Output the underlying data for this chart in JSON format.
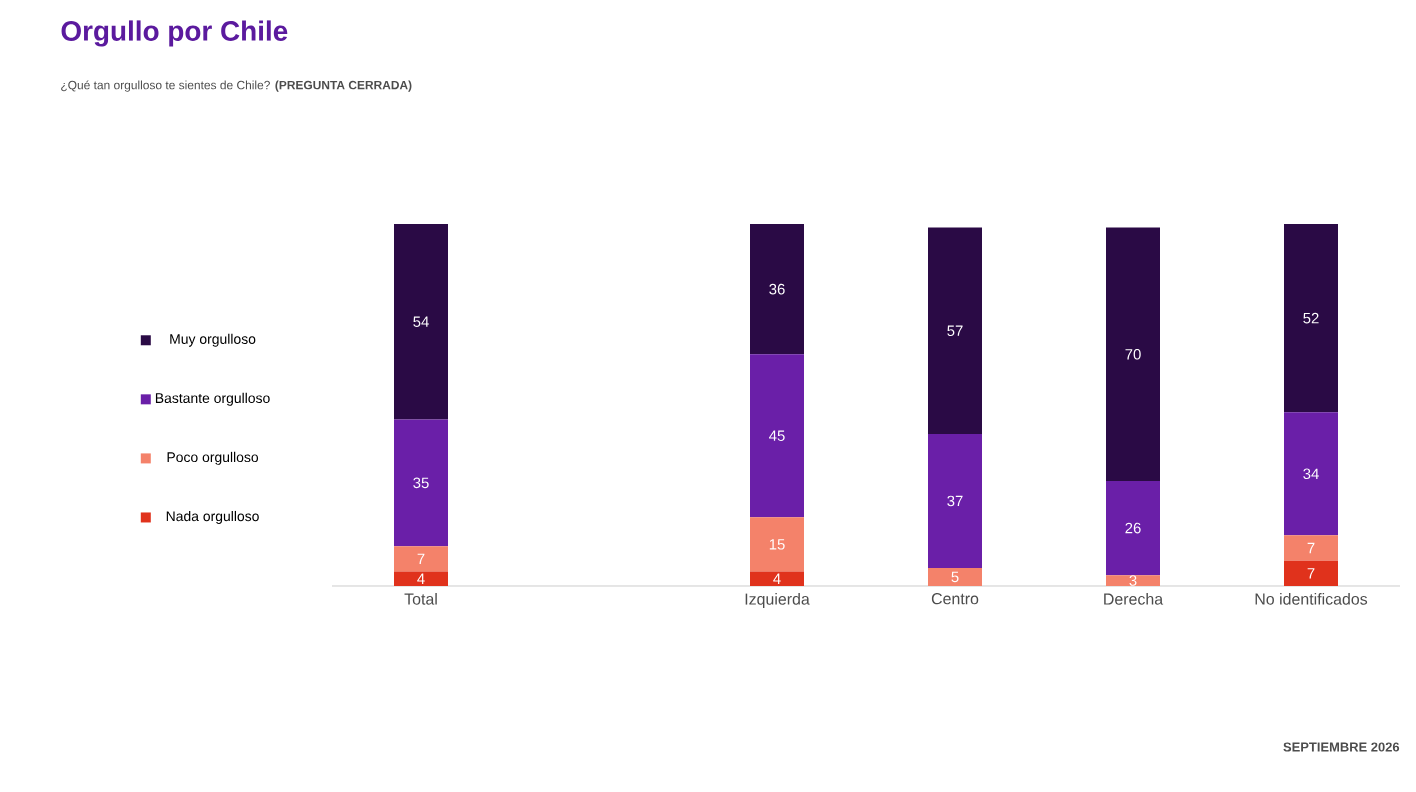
{
  "chart_data": {
    "type": "bar",
    "stacked": true,
    "title": "Orgullo por Chile",
    "subtitle": "¿Qué tan orgulloso te sientes de Chile? **(PREGUNTA CERRADA)**",
    "categories": [
      "Total",
      null,
      "Izquierda",
      "Centro",
      "Derecha",
      "No identificados"
    ],
    "series": [
      {
        "name": "Nada orgulloso",
        "color": "#e0321c",
        "values": [
          4,
          null,
          4,
          null,
          null,
          7
        ]
      },
      {
        "name": "Poco orgulloso",
        "color": "#f4826a",
        "values": [
          7,
          null,
          15,
          5,
          3,
          7
        ]
      },
      {
        "name": "Bastante orgulloso",
        "color": "#6a1fa8",
        "values": [
          35,
          null,
          45,
          37,
          26,
          34
        ]
      },
      {
        "name": "Muy orgulloso",
        "color": "#2a0a45",
        "values": [
          54,
          null,
          36,
          57,
          70,
          52
        ]
      }
    ],
    "data_labels": true,
    "legend": "left",
    "annotations": [
      "SEPTIEMBRE 2026"
    ]
  }
}
